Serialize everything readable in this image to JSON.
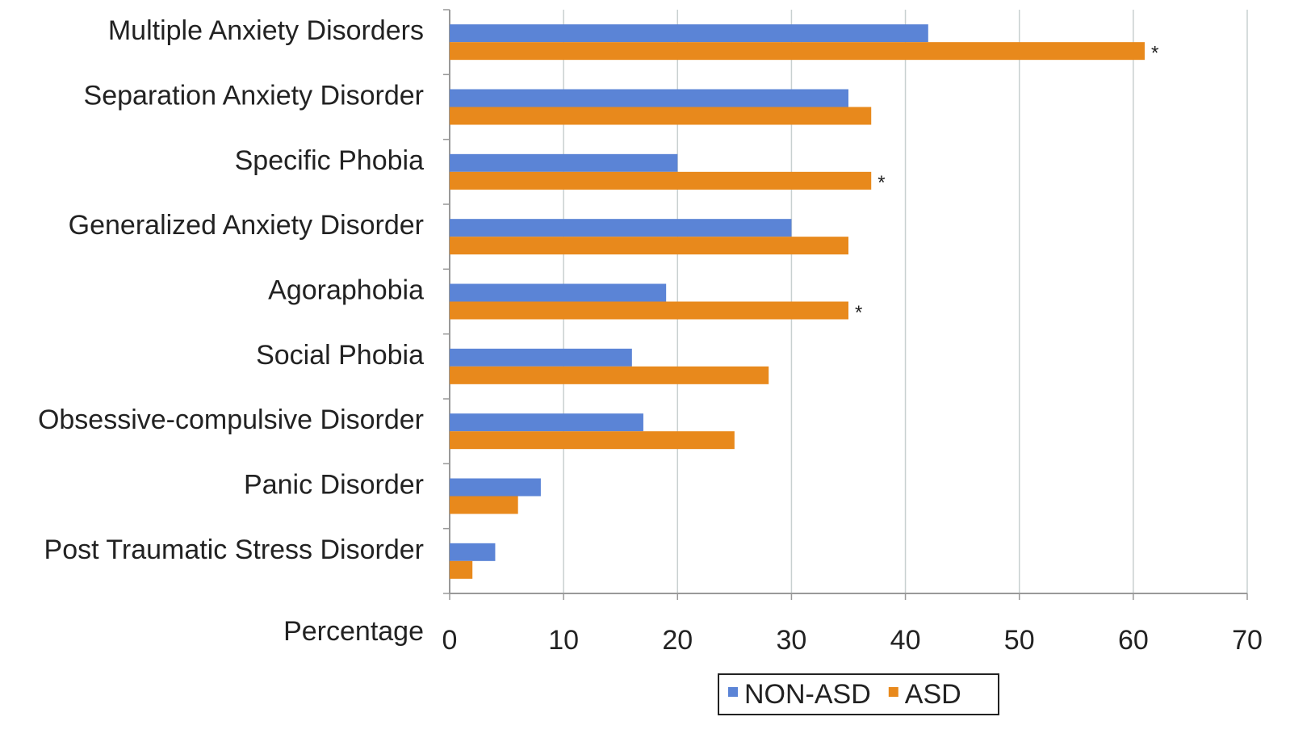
{
  "chart_data": {
    "type": "hbar",
    "x_label": "Percentage",
    "categories": [
      "Multiple Anxiety Disorders",
      "Separation Anxiety Disorder",
      "Specific Phobia",
      "Generalized Anxiety Disorder",
      "Agoraphobia",
      "Social Phobia",
      "Obsessive-compulsive Disorder",
      "Panic Disorder",
      "Post Traumatic Stress Disorder"
    ],
    "series": [
      {
        "name": "NON-ASD",
        "color": "#5b84d6",
        "values": [
          42,
          35,
          20,
          30,
          19,
          16,
          17,
          8,
          4
        ]
      },
      {
        "name": "ASD",
        "color": "#e8891c",
        "values": [
          61,
          37,
          37,
          35,
          35,
          28,
          25,
          6,
          2
        ],
        "annotations": [
          "*",
          null,
          "*",
          null,
          "*",
          null,
          null,
          null,
          null
        ]
      }
    ],
    "xlim": [
      0,
      70
    ],
    "xticks": [
      0,
      10,
      20,
      30,
      40,
      50,
      60,
      70
    ],
    "grid": true,
    "legend": "bottom"
  }
}
